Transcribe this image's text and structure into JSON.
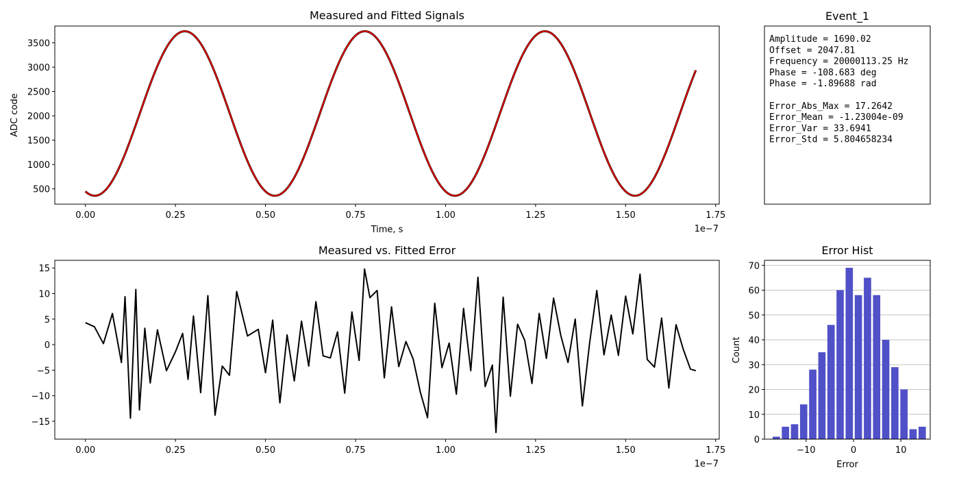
{
  "chart_data": [
    {
      "type": "line",
      "title": "Measured and Fitted Signals",
      "xlabel": "Time, s",
      "ylabel": "ADC code",
      "x_offset_label": "1e−7",
      "xlim": [
        -0.085,
        1.76
      ],
      "ylim": [
        185,
        3845
      ],
      "xticks": [
        0.0,
        0.25,
        0.5,
        0.75,
        1.0,
        1.25,
        1.5,
        1.75
      ],
      "xtick_labels": [
        "0.00",
        "0.25",
        "0.50",
        "0.75",
        "1.00",
        "1.25",
        "1.50",
        "1.75"
      ],
      "yticks": [
        500,
        1000,
        1500,
        2000,
        2500,
        3000,
        3500
      ],
      "ytick_labels": [
        "500",
        "1000",
        "1500",
        "2000",
        "2500",
        "3000",
        "3500"
      ],
      "grid": false,
      "series": [
        {
          "color": "#000000",
          "model": {
            "amplitude": 1690.02,
            "offset": 2047.81,
            "frequency_hz": 20000113.25,
            "phase_rad": -1.89688,
            "x_range": [
              0,
              1.695
            ],
            "x_scale": 1e-07
          }
        },
        {
          "color": "#e00000",
          "model": {
            "amplitude": 1690.02,
            "offset": 2047.81,
            "frequency_hz": 20000113.25,
            "phase_rad": -1.89688,
            "x_range": [
              0,
              1.695
            ],
            "x_scale": 1e-07
          }
        }
      ]
    },
    {
      "type": "line",
      "title": "Measured vs. Fitted Error",
      "xlabel": "",
      "ylabel": "",
      "x_offset_label": "1e−7",
      "xlim": [
        -0.085,
        1.76
      ],
      "ylim": [
        -18.5,
        16.5
      ],
      "xticks": [
        0.0,
        0.25,
        0.5,
        0.75,
        1.0,
        1.25,
        1.5,
        1.75
      ],
      "xtick_labels": [
        "0.00",
        "0.25",
        "0.50",
        "0.75",
        "1.00",
        "1.25",
        "1.50",
        "1.75"
      ],
      "yticks": [
        -15,
        -10,
        -5,
        0,
        5,
        10,
        15
      ],
      "ytick_labels": [
        "−15",
        "−10",
        "−5",
        "0",
        "5",
        "10",
        "15"
      ],
      "grid": false,
      "series": [
        {
          "color": "#000000",
          "x": [
            0.0,
            0.025,
            0.05,
            0.075,
            0.1,
            0.11,
            0.125,
            0.14,
            0.15,
            0.165,
            0.18,
            0.2,
            0.225,
            0.25,
            0.27,
            0.285,
            0.3,
            0.32,
            0.34,
            0.36,
            0.38,
            0.4,
            0.42,
            0.45,
            0.48,
            0.5,
            0.52,
            0.54,
            0.56,
            0.58,
            0.6,
            0.62,
            0.64,
            0.66,
            0.68,
            0.7,
            0.72,
            0.74,
            0.76,
            0.775,
            0.79,
            0.81,
            0.83,
            0.85,
            0.87,
            0.89,
            0.91,
            0.93,
            0.95,
            0.97,
            0.99,
            1.01,
            1.03,
            1.05,
            1.07,
            1.09,
            1.11,
            1.13,
            1.14,
            1.16,
            1.18,
            1.2,
            1.22,
            1.24,
            1.26,
            1.28,
            1.3,
            1.32,
            1.34,
            1.36,
            1.38,
            1.4,
            1.42,
            1.44,
            1.46,
            1.48,
            1.5,
            1.52,
            1.54,
            1.56,
            1.58,
            1.6,
            1.62,
            1.64,
            1.66,
            1.68,
            1.695
          ],
          "y": [
            4.3,
            3.5,
            0.2,
            6.1,
            -3.5,
            9.4,
            -14.4,
            10.8,
            -12.8,
            3.2,
            -7.5,
            2.9,
            -5.1,
            -1.4,
            2.2,
            -6.8,
            5.6,
            -9.4,
            9.6,
            -13.8,
            -4.2,
            -6.0,
            10.4,
            1.7,
            3.0,
            -5.5,
            4.8,
            -11.4,
            1.9,
            -7.1,
            4.6,
            -4.2,
            8.4,
            -2.2,
            -2.6,
            2.5,
            -9.5,
            6.4,
            -3.1,
            14.8,
            9.2,
            10.6,
            -6.5,
            7.4,
            -4.3,
            0.6,
            -2.8,
            -9.3,
            -14.3,
            8.1,
            -4.5,
            0.3,
            -9.7,
            7.1,
            -5.1,
            13.2,
            -8.2,
            -4.0,
            -17.2,
            9.3,
            -10.1,
            4.0,
            0.8,
            -7.6,
            6.1,
            -2.7,
            9.1,
            1.8,
            -3.5,
            5.0,
            -12.0,
            0.3,
            10.6,
            -2.0,
            5.8,
            -2.1,
            9.5,
            2.1,
            13.8,
            -2.9,
            -4.4,
            5.2,
            -8.5,
            3.9,
            -0.9,
            -4.8,
            -5.1
          ]
        }
      ]
    },
    {
      "type": "bar",
      "title": "Error Hist",
      "xlabel": "Error",
      "ylabel": "Count",
      "xlim": [
        -18.8,
        16.2
      ],
      "ylim": [
        0,
        72
      ],
      "xticks": [
        -10,
        0,
        10
      ],
      "xtick_labels": [
        "−10",
        "0",
        "10"
      ],
      "yticks": [
        0,
        10,
        20,
        30,
        40,
        50,
        60,
        70
      ],
      "ytick_labels": [
        "0",
        "10",
        "20",
        "30",
        "40",
        "50",
        "60",
        "70"
      ],
      "grid": true,
      "bar_color": "#5050c8",
      "bin_edges": [
        -17.26,
        -15.33,
        -13.41,
        -11.48,
        -9.56,
        -7.63,
        -5.71,
        -3.78,
        -1.86,
        0.07,
        1.99,
        3.92,
        5.84,
        7.77,
        9.69,
        11.62,
        13.54,
        15.47
      ],
      "values": [
        1,
        5,
        6,
        14,
        28,
        35,
        46,
        60,
        69,
        58,
        65,
        58,
        40,
        29,
        20,
        4,
        5
      ]
    }
  ],
  "info_panel": {
    "title": "Event_1",
    "lines": [
      "Amplitude = 1690.02",
      "Offset = 2047.81",
      "Frequency = 20000113.25 Hz",
      "Phase = -108.683 deg",
      "Phase = -1.89688 rad",
      "",
      "Error_Abs_Max = 17.2642",
      "Error_Mean = -1.23004e-09",
      "Error_Var = 33.6941",
      "Error_Std = 5.804658234"
    ]
  }
}
